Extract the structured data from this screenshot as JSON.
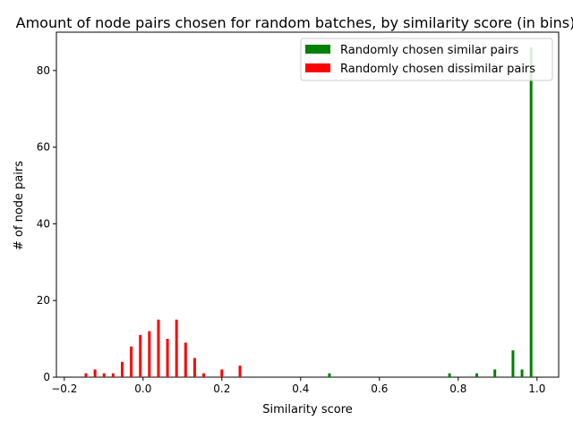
{
  "chart_data": {
    "type": "bar",
    "title": "Amount of node pairs chosen for random batches, by similarity score (in bins)",
    "xlabel": "Similarity score",
    "ylabel": "# of node pairs",
    "xlim": [
      -0.22,
      1.055
    ],
    "ylim": [
      0,
      90
    ],
    "xticks": [
      -0.2,
      0.0,
      0.2,
      0.4,
      0.6,
      0.8,
      1.0
    ],
    "xtick_labels": [
      "−0.2",
      "0.0",
      "0.2",
      "0.4",
      "0.6",
      "0.8",
      "1.0"
    ],
    "yticks": [
      0,
      20,
      40,
      60,
      80
    ],
    "ytick_labels": [
      "0",
      "20",
      "40",
      "60",
      "80"
    ],
    "bar_width": 0.009,
    "grid": false,
    "legend_position": "top-right",
    "series": [
      {
        "name": "Randomly chosen similar pairs",
        "color": "#008000",
        "x": [
          0.473,
          0.778,
          0.847,
          0.893,
          0.939,
          0.962,
          0.985
        ],
        "values": [
          1,
          1,
          1,
          2,
          7,
          2,
          86
        ]
      },
      {
        "name": "Randomly chosen dissimilar pairs",
        "color": "#ff0000",
        "x": [
          -0.145,
          -0.122,
          -0.099,
          -0.076,
          -0.053,
          -0.03,
          -0.007,
          0.016,
          0.039,
          0.062,
          0.085,
          0.108,
          0.131,
          0.154,
          0.2,
          0.246
        ],
        "values": [
          1,
          2,
          1,
          1,
          4,
          8,
          11,
          12,
          15,
          10,
          15,
          9,
          5,
          1,
          2,
          3
        ]
      }
    ]
  }
}
